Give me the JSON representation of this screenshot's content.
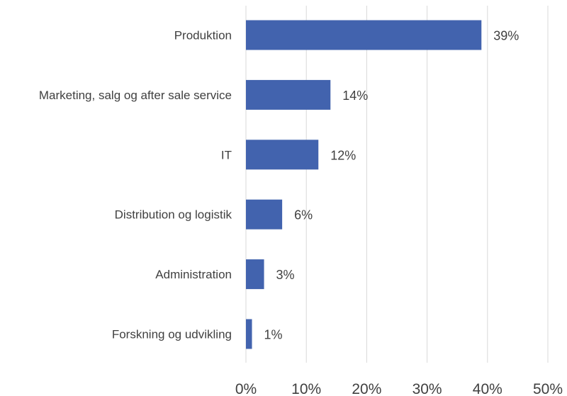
{
  "chart_data": {
    "type": "bar",
    "orientation": "horizontal",
    "categories": [
      "Produktion",
      "Marketing, salg og after sale service",
      "IT",
      "Distribution og logistik",
      "Administration",
      "Forskning og udvikling"
    ],
    "values": [
      39,
      14,
      12,
      6,
      3,
      1
    ],
    "data_labels": [
      "39%",
      "14%",
      "12%",
      "6%",
      "3%",
      "1%"
    ],
    "x_ticks": [
      "0%",
      "10%",
      "20%",
      "30%",
      "40%",
      "50%"
    ],
    "xlim": [
      0,
      50
    ],
    "xunit": "%",
    "title": "",
    "xlabel": "",
    "ylabel": "",
    "grid": "vertical",
    "legend": "none",
    "colors": {
      "bar": "#4263ae",
      "grid": "#d9d9d9",
      "text": "#404040"
    }
  }
}
